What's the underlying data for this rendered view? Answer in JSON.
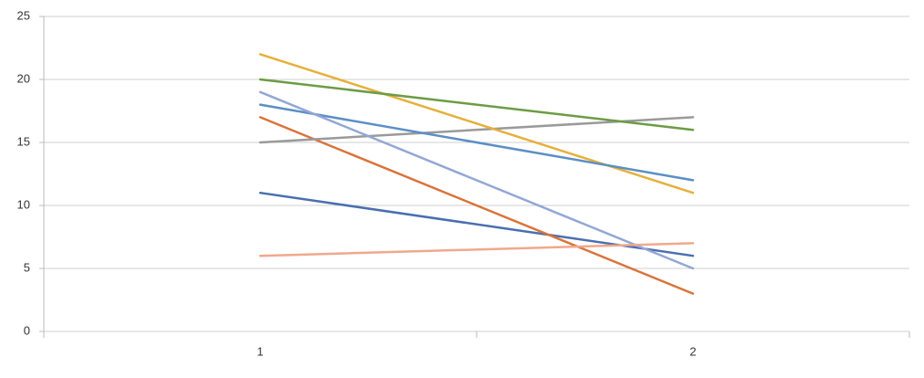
{
  "chart_data": {
    "type": "line",
    "categories": [
      "1",
      "2"
    ],
    "series": [
      {
        "color": "#4a6fb0",
        "values": [
          11,
          6
        ]
      },
      {
        "color": "#d9733a",
        "values": [
          17,
          3
        ]
      },
      {
        "color": "#9a9a9a",
        "values": [
          15,
          17
        ]
      },
      {
        "color": "#e6b03c",
        "values": [
          22,
          11
        ]
      },
      {
        "color": "#5b8fc4",
        "values": [
          18,
          12
        ]
      },
      {
        "color": "#6c9c45",
        "values": [
          20,
          16
        ]
      },
      {
        "color": "#93a6d6",
        "values": [
          19,
          5
        ]
      },
      {
        "color": "#f0a88c",
        "values": [
          6,
          7
        ]
      }
    ],
    "ylim": [
      0,
      25
    ],
    "yticks": [
      0,
      5,
      10,
      15,
      20,
      25
    ],
    "grid": true
  }
}
